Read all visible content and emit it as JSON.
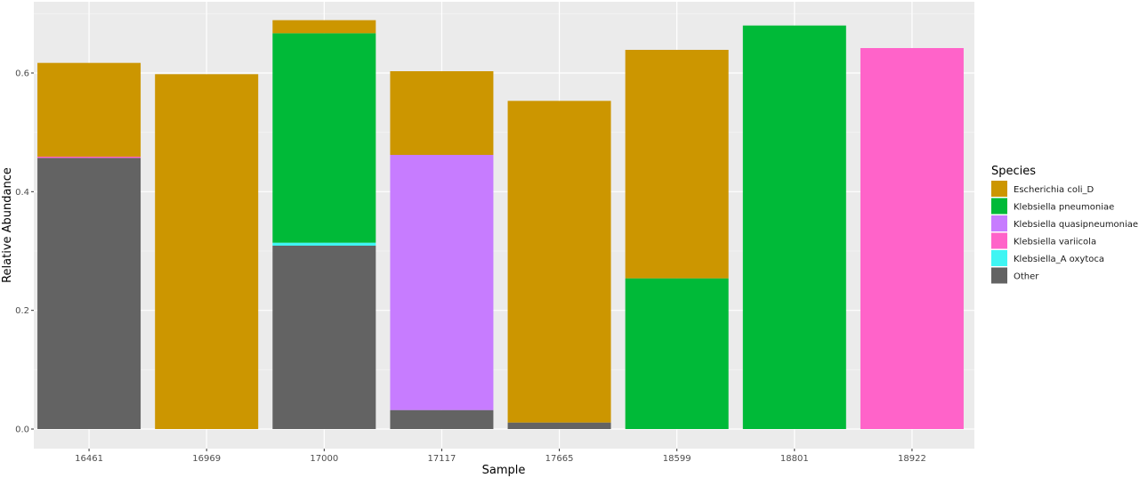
{
  "chart_data": {
    "type": "bar",
    "stacked": true,
    "xlabel": "Sample",
    "ylabel": "Relative Abundance",
    "ylim": [
      0,
      0.71
    ],
    "yticks": [
      "0.0",
      "0.2",
      "0.4",
      "0.6"
    ],
    "ytick_values": [
      0,
      0.2,
      0.4,
      0.6
    ],
    "grid": true,
    "legend_title": "Species",
    "legend_position": "right",
    "categories": [
      "16461",
      "16969",
      "17000",
      "17117",
      "17665",
      "18599",
      "18801",
      "18922"
    ],
    "series": [
      {
        "name": "Other",
        "color": "#636363",
        "values": [
          0.457,
          0,
          0.309,
          0.032,
          0.011,
          0,
          0,
          0
        ]
      },
      {
        "name": "Klebsiella_A oxytoca",
        "color": "#3ff5f3",
        "values": [
          0,
          0,
          0.005,
          0,
          0,
          0,
          0,
          0
        ]
      },
      {
        "name": "Klebsiella variicola",
        "color": "#ff63c9",
        "values": [
          0.002,
          0,
          0,
          0,
          0,
          0,
          0,
          0.642
        ]
      },
      {
        "name": "Klebsiella quasipneumoniae",
        "color": "#c77cff",
        "values": [
          0,
          0,
          0,
          0.43,
          0,
          0,
          0,
          0
        ]
      },
      {
        "name": "Klebsiella pneumoniae",
        "color": "#00ba38",
        "values": [
          0,
          0,
          0.353,
          0,
          0,
          0.254,
          0.68,
          0
        ]
      },
      {
        "name": "Escherichia coli_D",
        "color": "#cc9600",
        "values": [
          0.158,
          0.598,
          0.022,
          0.141,
          0.542,
          0.385,
          0,
          0
        ]
      }
    ],
    "legend_order": [
      "Escherichia coli_D",
      "Klebsiella pneumoniae",
      "Klebsiella quasipneumoniae",
      "Klebsiella variicola",
      "Klebsiella_A oxytoca",
      "Other"
    ]
  }
}
